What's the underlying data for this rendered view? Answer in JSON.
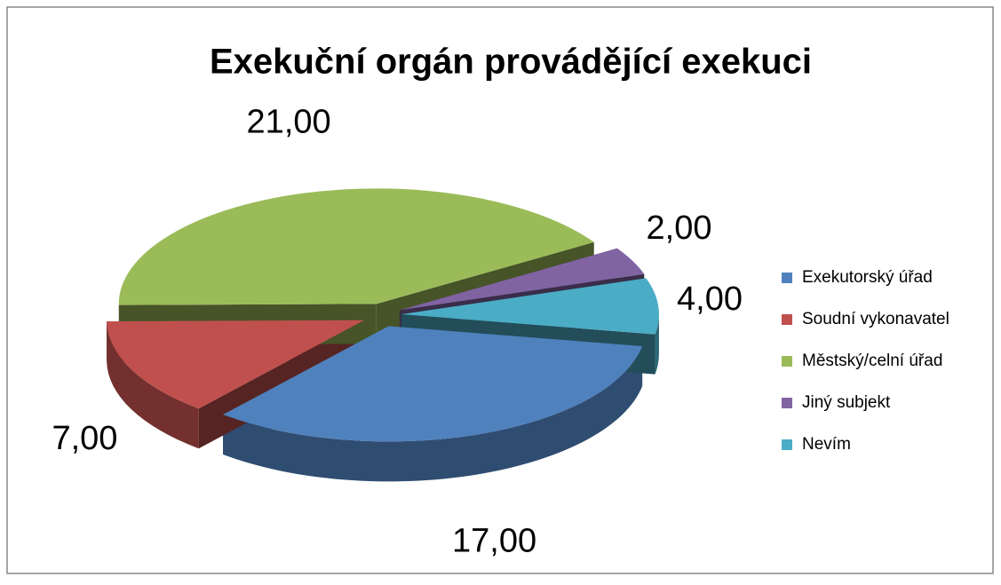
{
  "chart_data": {
    "type": "pie",
    "title": "Exekuční orgán provádějící exekuci",
    "categories": [
      "Exekutorský úřad",
      "Soudní vykonavatel",
      "Městský/celní úřad",
      "Jiný subjekt",
      "Nevím"
    ],
    "values": [
      17,
      7,
      21,
      2,
      4
    ],
    "value_labels": [
      "17,00",
      "7,00",
      "21,00",
      "2,00",
      "4,00"
    ],
    "colors": [
      "#4f81bd",
      "#c0504d",
      "#9bbb59",
      "#8064a2",
      "#4bacc6"
    ],
    "legend": "right"
  }
}
